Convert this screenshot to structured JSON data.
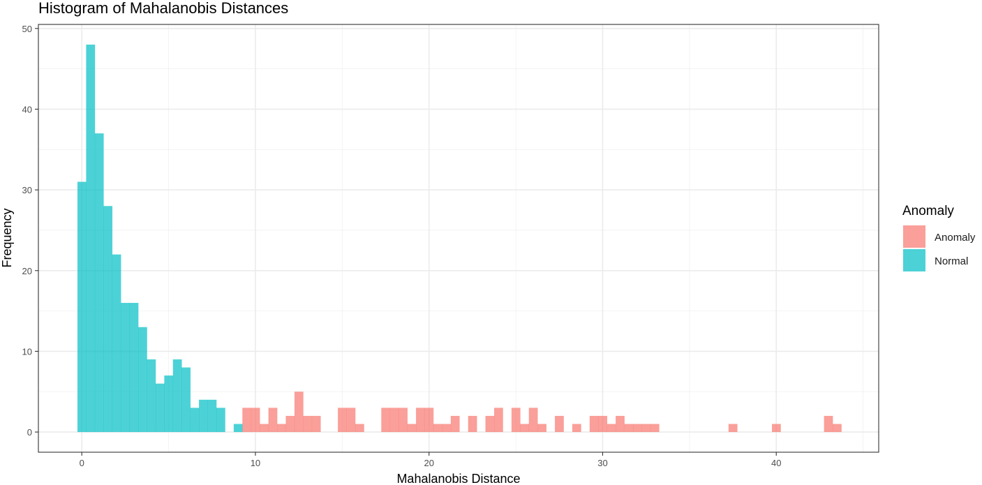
{
  "chart_data": {
    "type": "bar",
    "title": "Histogram of Mahalanobis Distances",
    "xlabel": "Mahalanobis Distance",
    "ylabel": "Frequency",
    "xlim": [
      -2.5,
      45.9
    ],
    "ylim": [
      -2.5,
      50.5
    ],
    "x_ticks": [
      "0",
      "10",
      "20",
      "30",
      "40"
    ],
    "x_tick_values": [
      0,
      10,
      20,
      30,
      40
    ],
    "y_ticks": [
      "0",
      "10",
      "20",
      "30",
      "40",
      "50"
    ],
    "y_tick_values": [
      0,
      10,
      20,
      30,
      40,
      50
    ],
    "grid": true,
    "bin_width": 0.5,
    "legend": {
      "title": "Anomaly",
      "placement": "right",
      "entries": [
        {
          "label": "Anomaly",
          "color": "#F8766D"
        },
        {
          "label": "Normal",
          "color": "#00BFC4"
        }
      ]
    },
    "series": [
      {
        "name": "Normal",
        "color": "#00BFC4",
        "x": [
          0,
          0.5,
          1.0,
          1.5,
          2.0,
          2.5,
          3.0,
          3.5,
          4.0,
          4.5,
          5.0,
          5.5,
          6.0,
          6.5,
          7.0,
          7.5,
          8.0,
          9.0
        ],
        "values": [
          31,
          48,
          37,
          28,
          22,
          16,
          16,
          13,
          9,
          6,
          7,
          9,
          8,
          3,
          4,
          4,
          3,
          1
        ]
      },
      {
        "name": "Anomaly",
        "color": "#F8766D",
        "x": [
          9.5,
          10.0,
          10.5,
          11.0,
          11.5,
          12.0,
          12.5,
          13.0,
          13.5,
          15.0,
          15.5,
          16.0,
          17.5,
          18.0,
          18.5,
          19.0,
          19.5,
          20.0,
          20.5,
          21.0,
          21.5,
          22.5,
          23.5,
          24.0,
          25.0,
          25.5,
          26.0,
          26.5,
          27.5,
          28.5,
          29.5,
          30.0,
          30.5,
          31.0,
          31.5,
          32.0,
          32.5,
          33.0,
          37.5,
          40.0,
          43.0,
          43.5
        ],
        "values": [
          3,
          3,
          1,
          3,
          1,
          2,
          5,
          2,
          2,
          3,
          3,
          1,
          3,
          3,
          3,
          1,
          3,
          3,
          1,
          1,
          2,
          2,
          2,
          3,
          3,
          1,
          3,
          1,
          2,
          1,
          2,
          2,
          1,
          2,
          1,
          1,
          1,
          1,
          1,
          1,
          2,
          1
        ]
      }
    ]
  }
}
